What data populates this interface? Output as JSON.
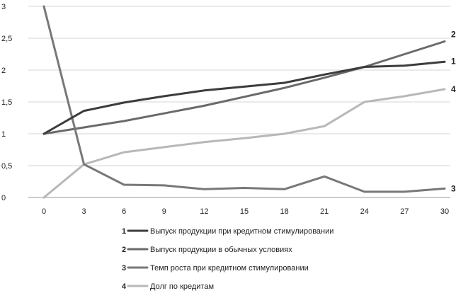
{
  "chart_data": {
    "type": "line",
    "title": "",
    "xlabel": "",
    "ylabel": "",
    "x": [
      0,
      3,
      6,
      9,
      12,
      15,
      18,
      21,
      24,
      27,
      30
    ],
    "xticks": [
      "0",
      "3",
      "6",
      "9",
      "12",
      "15",
      "18",
      "21",
      "24",
      "27",
      "30"
    ],
    "yticks": [
      "0",
      "0,5",
      "1",
      "1,5",
      "2",
      "2,5",
      "3"
    ],
    "ytick_values": [
      0,
      0.5,
      1,
      1.5,
      2,
      2.5,
      3
    ],
    "ylim": [
      0,
      3
    ],
    "xlim": [
      0,
      30
    ],
    "grid": "horizontal",
    "legend_position": "bottom",
    "series": [
      {
        "number": "1",
        "name": "Выпуск продукции при кредитном стимулировании",
        "color": "#3c3c3c",
        "values": [
          1.0,
          1.36,
          1.49,
          1.59,
          1.68,
          1.74,
          1.8,
          1.93,
          2.05,
          2.07,
          2.13
        ]
      },
      {
        "number": "2",
        "name": "Выпуск продукции в обычных условиях",
        "color": "#6a6a6a",
        "values": [
          1.0,
          1.1,
          1.2,
          1.32,
          1.44,
          1.58,
          1.72,
          1.88,
          2.05,
          2.25,
          2.45
        ]
      },
      {
        "number": "3",
        "name": "Темп роста при кредитном стимулировании",
        "color": "#787878",
        "values": [
          3.0,
          0.52,
          0.2,
          0.19,
          0.13,
          0.15,
          0.13,
          0.33,
          0.09,
          0.09,
          0.14
        ]
      },
      {
        "number": "4",
        "name": "Долг по кредитам",
        "color": "#b8b8b8",
        "values": [
          0.0,
          0.52,
          0.71,
          0.79,
          0.87,
          0.93,
          1.0,
          1.12,
          1.5,
          1.59,
          1.7
        ]
      }
    ],
    "end_labels": [
      "2",
      "1",
      "4",
      "3"
    ]
  }
}
